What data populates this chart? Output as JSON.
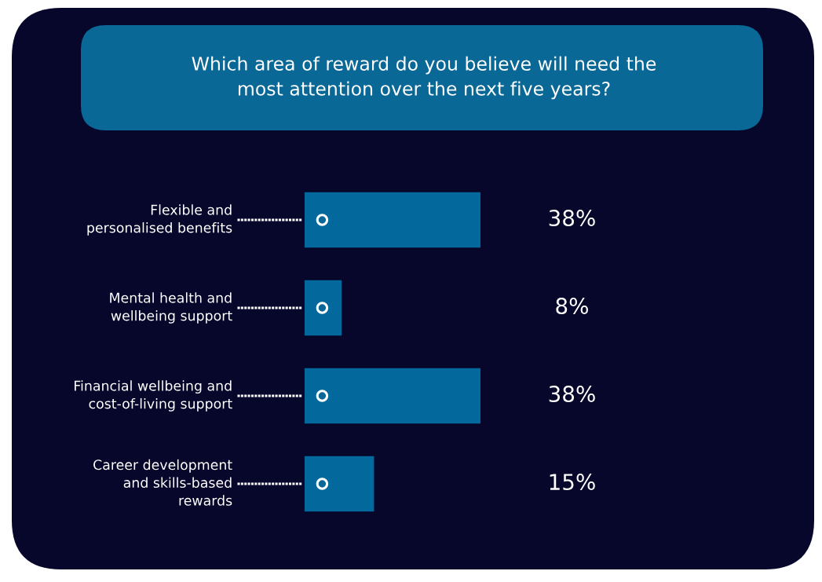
{
  "chart_data": {
    "type": "bar",
    "orientation": "horizontal",
    "title": "Which area of reward do you believe will need the\nmost attention over the next five years?",
    "categories": [
      "Flexible and\npersonalised benefits",
      "Mental health and\nwellbeing support",
      "Financial wellbeing and\ncost-of-living support",
      "Career development\nand skills-based\nrewards"
    ],
    "values": [
      38,
      8,
      38,
      15
    ],
    "value_labels": [
      "38%",
      "8%",
      "38%",
      "15%"
    ],
    "color": "#03699c"
  }
}
